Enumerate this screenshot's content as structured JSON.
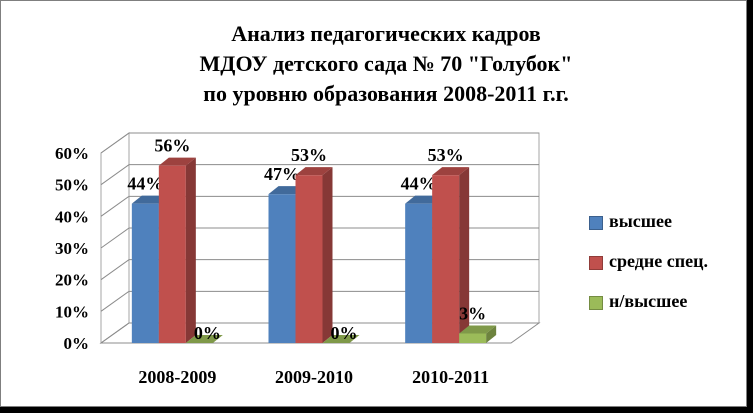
{
  "chart_data": {
    "type": "bar",
    "title": [
      "Анализ педагогических кадров",
      "МДОУ детского сада № 70 \"Голубок\"",
      "по уровню образования 2008-2011 г.г."
    ],
    "categories": [
      "2008-2009",
      "2009-2010",
      "2010-2011"
    ],
    "series": [
      {
        "name": "высшее",
        "values": [
          44,
          47,
          44
        ],
        "color": "#4F81BD"
      },
      {
        "name": "средне спец.",
        "values": [
          56,
          53,
          53
        ],
        "color": "#C0504D"
      },
      {
        "name": "н/высшее",
        "values": [
          0,
          0,
          3
        ],
        "color": "#9BBB59"
      }
    ],
    "data_labels": [
      [
        "44%",
        "47%",
        "44%"
      ],
      [
        "56%",
        "53%",
        "53%"
      ],
      [
        "0%",
        "0%",
        "3%"
      ]
    ],
    "y_ticks": [
      "0%",
      "10%",
      "20%",
      "30%",
      "40%",
      "50%",
      "60%"
    ],
    "ylim": [
      0,
      60
    ],
    "grid": true,
    "legend_position": "right",
    "style": "3d-clustered-column"
  }
}
